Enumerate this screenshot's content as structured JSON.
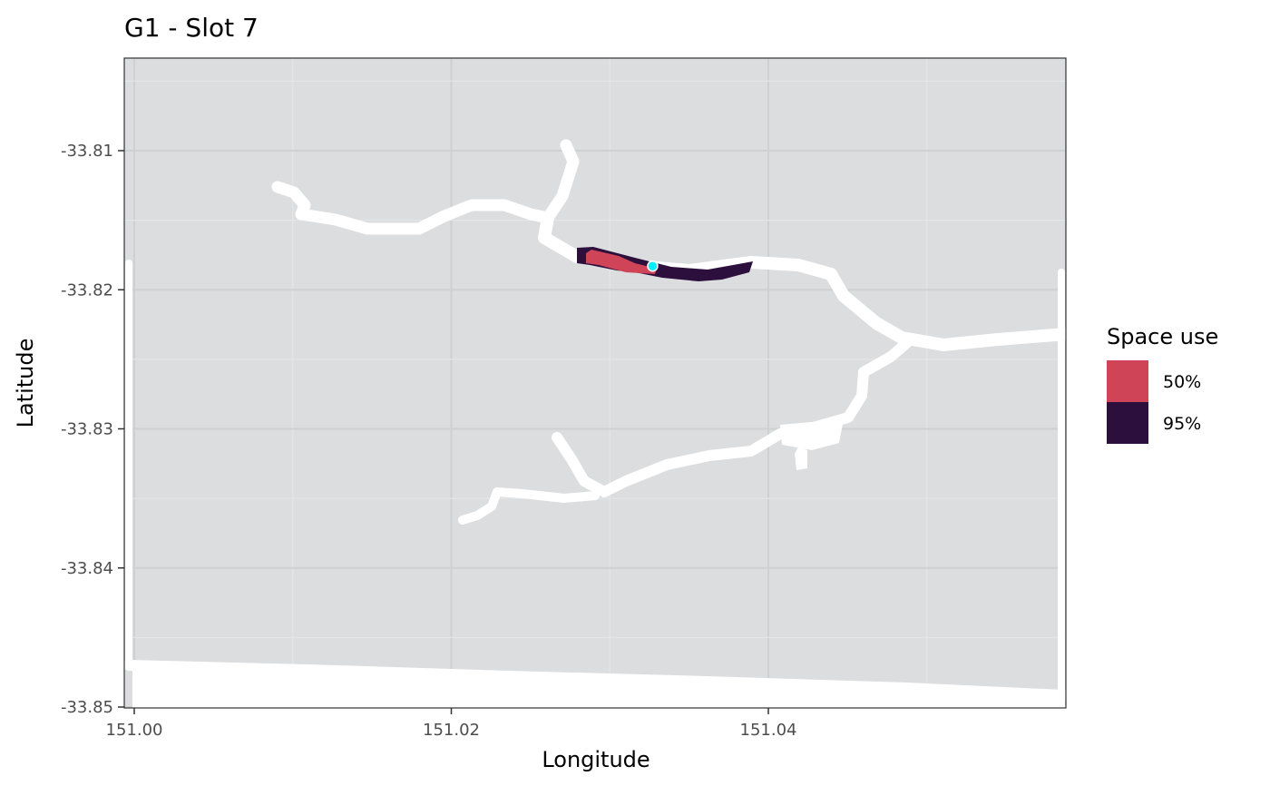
{
  "chart_data": {
    "type": "map",
    "title": "G1 - Slot 7",
    "xlabel": "Longitude",
    "ylabel": "Latitude",
    "xlim": [
      150.999,
      151.059
    ],
    "ylim": [
      -33.8502,
      -33.8035
    ],
    "x_ticks": [
      {
        "value": 151.0,
        "label": "151.00"
      },
      {
        "value": 151.02,
        "label": "151.02"
      },
      {
        "value": 151.04,
        "label": "151.04"
      }
    ],
    "y_ticks": [
      {
        "value": -33.81,
        "label": "-33.81"
      },
      {
        "value": -33.82,
        "label": "-33.82"
      },
      {
        "value": -33.83,
        "label": "-33.83"
      },
      {
        "value": -33.84,
        "label": "-33.84"
      },
      {
        "value": -33.85,
        "label": "-33.85"
      }
    ],
    "grid": true,
    "legend": {
      "title": "Space use",
      "position": "right",
      "entries": [
        {
          "label": "50%",
          "color": "#cf4457"
        },
        {
          "label": "95%",
          "color": "#2d0f3d"
        }
      ]
    },
    "colors": {
      "land": "#dcdddf",
      "water": "#ffffff",
      "grid_major": "#cfd0d2",
      "grid_minor": "#e4e5e6",
      "point_fill": "#00f0ff"
    },
    "detection_point": {
      "lon": 151.0327,
      "lat": -33.8183
    }
  }
}
